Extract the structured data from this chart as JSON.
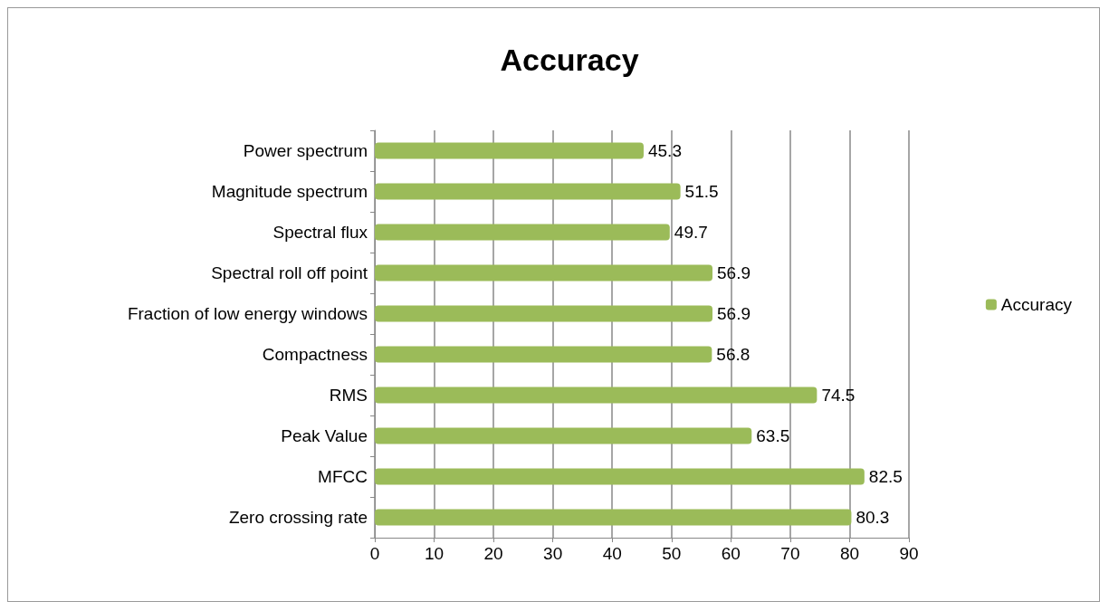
{
  "chart_data": {
    "type": "bar",
    "orientation": "horizontal",
    "title": "Accuracy",
    "categories": [
      "Power spectrum",
      "Magnitude spectrum",
      "Spectral flux",
      "Spectral roll off point",
      "Fraction of low energy windows",
      "Compactness",
      "RMS",
      "Peak Value",
      "MFCC",
      "Zero crossing rate"
    ],
    "series": [
      {
        "name": "Accuracy",
        "color": "#9bbb59",
        "values": [
          45.3,
          51.5,
          49.7,
          56.9,
          56.9,
          56.8,
          74.5,
          63.5,
          82.5,
          80.3
        ]
      }
    ],
    "xlim": [
      0,
      90
    ],
    "xticks": [
      0,
      10,
      20,
      30,
      40,
      50,
      60,
      70,
      80,
      90
    ],
    "grid": "x",
    "legend": "right",
    "data_labels": true
  }
}
